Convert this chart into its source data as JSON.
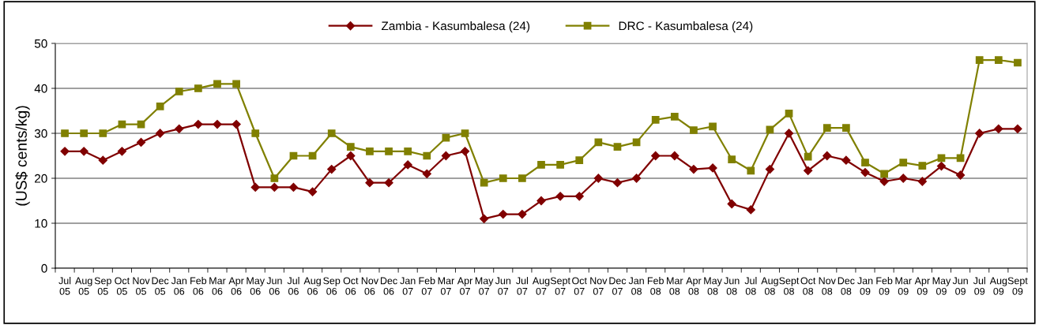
{
  "chart_data": {
    "type": "line",
    "ylabel": "(US$ cents/kg)",
    "categories": [
      "Jul\n05",
      "Aug\n05",
      "Sep\n05",
      "Oct\n05",
      "Nov\n05",
      "Dec\n05",
      "Jan\n06",
      "Feb\n06",
      "Mar\n06",
      "Apr\n06",
      "May\n06",
      "Jun\n06",
      "Jul\n06",
      "Aug\n06",
      "Sep\n06",
      "Oct\n06",
      "Nov\n06",
      "Dec\n06",
      "Jan\n07",
      "Feb\n07",
      "Mar\n07",
      "Apr\n07",
      "May\n07",
      "Jun\n07",
      "Jul\n07",
      "Aug\n07",
      "Sept\n07",
      "Oct\n07",
      "Nov\n07",
      "Dec\n07",
      "Jan\n08",
      "Feb\n08",
      "Mar\n08",
      "Apr\n08",
      "May\n08",
      "Jun\n08",
      "Jul\n08",
      "Aug\n08",
      "Sept\n08",
      "Oct\n08",
      "Nov\n08",
      "Dec\n08",
      "Jan\n09",
      "Feb\n09",
      "Mar\n09",
      "Apr\n09",
      "May\n09",
      "Jun\n09",
      "Jul\n09",
      "Aug\n09",
      "Sept\n09"
    ],
    "series": [
      {
        "name": "Zambia - Kasumbalesa (24)",
        "color": "#800000",
        "marker": "diamond",
        "values": [
          26,
          26,
          24,
          26,
          28,
          30,
          31,
          32,
          32,
          32,
          18,
          18,
          18,
          17,
          22,
          25,
          19,
          19,
          23,
          21,
          25,
          26,
          11,
          12,
          12,
          15,
          16,
          16,
          20,
          19,
          20,
          25,
          25,
          22,
          22.3,
          14.3,
          13,
          22,
          30,
          21.7,
          25,
          24,
          21.3,
          19.3,
          20,
          19.3,
          22.7,
          20.7,
          30,
          31,
          31
        ]
      },
      {
        "name": "DRC - Kasumbalesa (24)",
        "color": "#808000",
        "marker": "square",
        "values": [
          30,
          30,
          30,
          32,
          32,
          36,
          39.3,
          40,
          41,
          41,
          30,
          20,
          25,
          25,
          30,
          27,
          26,
          26,
          26,
          25,
          29,
          30,
          19,
          20,
          20,
          23,
          23,
          24,
          28,
          27,
          28,
          33,
          33.7,
          30.7,
          31.5,
          24.2,
          21.7,
          30.8,
          34.4,
          24.8,
          31.2,
          31.2,
          23.5,
          21,
          23.5,
          22.8,
          24.5,
          24.5,
          46.3,
          46.3,
          45.7
        ]
      }
    ],
    "ylim": [
      0,
      50
    ],
    "yticks": [
      0,
      10,
      20,
      30,
      40,
      50
    ],
    "grid": "y",
    "legend": "top"
  }
}
